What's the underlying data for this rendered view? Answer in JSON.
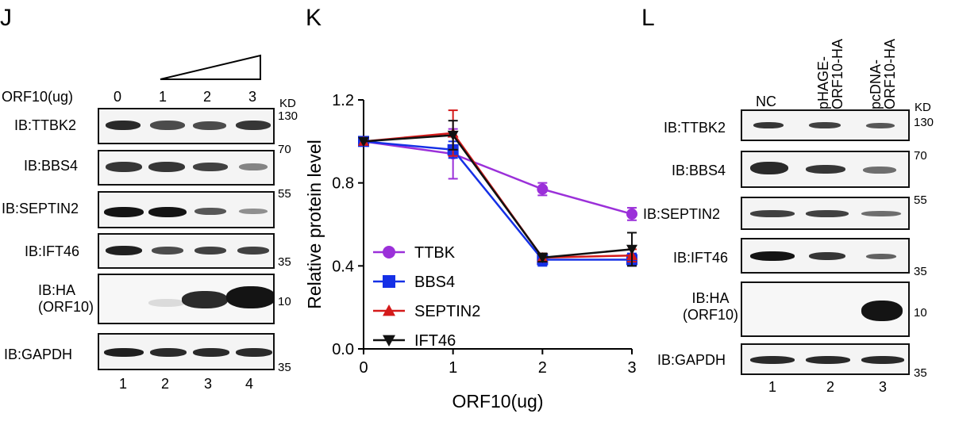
{
  "panels": {
    "j": "J",
    "k": "K",
    "l": "L"
  },
  "panel_j": {
    "row_label": "ORF10(ug)",
    "doses": [
      "0",
      "1",
      "2",
      "3"
    ],
    "kd_label": "KD",
    "blots": [
      {
        "label": "IB:TTBK2",
        "marker": "130"
      },
      {
        "label": "IB:BBS4",
        "marker": "70"
      },
      {
        "label": "IB:SEPTIN2",
        "marker": "55"
      },
      {
        "label": "IB:IFT46",
        "marker": "35"
      },
      {
        "label": "IB:HA\n(ORF10)",
        "marker": "10"
      },
      {
        "label": "IB:GAPDH",
        "marker": "35"
      }
    ],
    "lanes": [
      "1",
      "2",
      "3",
      "4"
    ]
  },
  "panel_l": {
    "columns": [
      "NC",
      "pHAGE-\nORF10-HA",
      "pcDNA-\nORF10-HA"
    ],
    "kd_label": "KD",
    "blots": [
      {
        "label": "IB:TTBK2",
        "marker": "130"
      },
      {
        "label": "IB:BBS4",
        "marker": "70"
      },
      {
        "label": "IB:SEPTIN2",
        "marker": "55"
      },
      {
        "label": "IB:IFT46",
        "marker": "35"
      },
      {
        "label": "IB:HA\n(ORF10)",
        "marker": "10"
      },
      {
        "label": "IB:GAPDH",
        "marker": "35"
      }
    ],
    "lanes": [
      "1",
      "2",
      "3"
    ]
  },
  "chart_data": {
    "type": "line",
    "title": "",
    "xlabel": "ORF10(ug)",
    "ylabel": "Relative protein level",
    "x": [
      0,
      1,
      2,
      3
    ],
    "xlim": [
      0,
      3
    ],
    "ylim": [
      0,
      1.2
    ],
    "xticks": [
      "0",
      "1",
      "2",
      "3"
    ],
    "yticks": [
      "0.0",
      "0.4",
      "0.8",
      "1.2"
    ],
    "grid": false,
    "legend_position": "bottom-left",
    "series": [
      {
        "name": "TTBK",
        "color": "#9b30d9",
        "marker": "circle",
        "values": [
          1.0,
          0.94,
          0.77,
          0.65
        ],
        "errors": [
          0,
          0.12,
          0.03,
          0.03
        ]
      },
      {
        "name": "BBS4",
        "color": "#1530e6",
        "marker": "square",
        "values": [
          1.0,
          0.96,
          0.43,
          0.43
        ],
        "errors": [
          0,
          0.04,
          0.03,
          0.03
        ]
      },
      {
        "name": "SEPTIN2",
        "color": "#d41a1a",
        "marker": "triangle-up",
        "values": [
          1.0,
          1.04,
          0.44,
          0.45
        ],
        "errors": [
          0,
          0.11,
          0.02,
          0.03
        ]
      },
      {
        "name": "IFT46",
        "color": "#111111",
        "marker": "triangle-down",
        "values": [
          1.0,
          1.03,
          0.44,
          0.48
        ],
        "errors": [
          0,
          0.07,
          0.02,
          0.08
        ]
      }
    ]
  }
}
